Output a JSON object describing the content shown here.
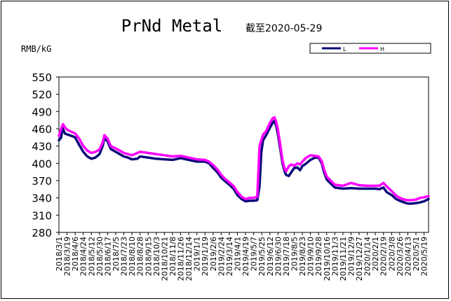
{
  "chart_data": {
    "type": "line",
    "title": "PrNd Metal",
    "subtitle": "截至2020-05-29",
    "ylabel": "RMB/kG",
    "xlabel": "",
    "ylim": [
      280,
      550
    ],
    "yticks": [
      280,
      310,
      340,
      370,
      400,
      430,
      460,
      490,
      520,
      550
    ],
    "grid": false,
    "legend_position": "top-right",
    "x_start": "2018/3/1",
    "x_end": "2020/5/29",
    "x_ticks": [
      "2018/3/1",
      "2018/3/19",
      "2018/4/6",
      "2018/4/24",
      "2018/5/12",
      "2018/5/30",
      "2018/6/17",
      "2018/7/5",
      "2018/7/23",
      "2018/8/10",
      "2018/8/28",
      "2018/9/15",
      "2018/10/3",
      "2018/10/21",
      "2018/11/8",
      "2018/11/26",
      "2018/12/14",
      "2019/1/1",
      "2019/1/19",
      "2019/2/6",
      "2019/2/24",
      "2019/3/14",
      "2019/4/1",
      "2019/4/19",
      "2019/5/7",
      "2019/5/25",
      "2019/6/12",
      "2019/6/30",
      "2019/7/18",
      "2019/8/5",
      "2019/8/23",
      "2019/9/10",
      "2019/9/28",
      "2019/10/16",
      "2019/11/3",
      "2019/11/21",
      "2019/12/9",
      "2019/12/27",
      "2020/1/14",
      "2020/2/1",
      "2020/2/19",
      "2020/3/8",
      "2020/3/26",
      "2020/4/13",
      "2020/5/1",
      "2020/5/19"
    ],
    "series": [
      {
        "name": "L",
        "color": "#0a0a7a",
        "points": [
          [
            "2018/3/1",
            440
          ],
          [
            "2018/3/6",
            445
          ],
          [
            "2018/3/9",
            462
          ],
          [
            "2018/3/14",
            452
          ],
          [
            "2018/3/20",
            450
          ],
          [
            "2018/3/28",
            448
          ],
          [
            "2018/4/6",
            445
          ],
          [
            "2018/4/15",
            432
          ],
          [
            "2018/4/24",
            420
          ],
          [
            "2018/5/3",
            412
          ],
          [
            "2018/5/12",
            408
          ],
          [
            "2018/5/21",
            410
          ],
          [
            "2018/5/30",
            416
          ],
          [
            "2018/6/6",
            430
          ],
          [
            "2018/6/10",
            444
          ],
          [
            "2018/6/17",
            438
          ],
          [
            "2018/6/24",
            425
          ],
          [
            "2018/7/5",
            420
          ],
          [
            "2018/7/14",
            416
          ],
          [
            "2018/7/23",
            412
          ],
          [
            "2018/8/1",
            410
          ],
          [
            "2018/8/10",
            407
          ],
          [
            "2018/8/22",
            408
          ],
          [
            "2018/8/28",
            412
          ],
          [
            "2018/9/15",
            410
          ],
          [
            "2018/10/3",
            408
          ],
          [
            "2018/10/21",
            407
          ],
          [
            "2018/11/8",
            406
          ],
          [
            "2018/11/26",
            409
          ],
          [
            "2018/12/14",
            406
          ],
          [
            "2019/1/1",
            403
          ],
          [
            "2019/1/19",
            403
          ],
          [
            "2019/1/28",
            400
          ],
          [
            "2019/2/6",
            392
          ],
          [
            "2019/2/15",
            385
          ],
          [
            "2019/2/24",
            375
          ],
          [
            "2019/3/6",
            368
          ],
          [
            "2019/3/14",
            363
          ],
          [
            "2019/3/24",
            355
          ],
          [
            "2019/4/1",
            345
          ],
          [
            "2019/4/10",
            338
          ],
          [
            "2019/4/19",
            334
          ],
          [
            "2019/4/28",
            335
          ],
          [
            "2019/5/7",
            335
          ],
          [
            "2019/5/15",
            336
          ],
          [
            "2019/5/20",
            360
          ],
          [
            "2019/5/24",
            420
          ],
          [
            "2019/5/28",
            440
          ],
          [
            "2019/6/3",
            448
          ],
          [
            "2019/6/12",
            462
          ],
          [
            "2019/6/18",
            470
          ],
          [
            "2019/6/22",
            474
          ],
          [
            "2019/6/26",
            465
          ],
          [
            "2019/6/30",
            450
          ],
          [
            "2019/7/5",
            425
          ],
          [
            "2019/7/10",
            400
          ],
          [
            "2019/7/15",
            385
          ],
          [
            "2019/7/18",
            380
          ],
          [
            "2019/7/24",
            378
          ],
          [
            "2019/7/30",
            385
          ],
          [
            "2019/8/5",
            392
          ],
          [
            "2019/8/12",
            393
          ],
          [
            "2019/8/18",
            388
          ],
          [
            "2019/8/23",
            395
          ],
          [
            "2019/9/1",
            400
          ],
          [
            "2019/9/10",
            406
          ],
          [
            "2019/9/20",
            410
          ],
          [
            "2019/9/28",
            410
          ],
          [
            "2019/10/5",
            400
          ],
          [
            "2019/10/10",
            385
          ],
          [
            "2019/10/16",
            372
          ],
          [
            "2019/10/25",
            365
          ],
          [
            "2019/11/3",
            358
          ],
          [
            "2019/11/21",
            356
          ],
          [
            "2019/12/9",
            357
          ],
          [
            "2019/12/27",
            356
          ],
          [
            "2020/1/14",
            356
          ],
          [
            "2020/2/1",
            356
          ],
          [
            "2020/2/10",
            355
          ],
          [
            "2020/2/19",
            358
          ],
          [
            "2020/2/26",
            350
          ],
          [
            "2020/3/8",
            345
          ],
          [
            "2020/3/18",
            338
          ],
          [
            "2020/3/26",
            335
          ],
          [
            "2020/4/5",
            332
          ],
          [
            "2020/4/13",
            330
          ],
          [
            "2020/4/22",
            330
          ],
          [
            "2020/5/1",
            331
          ],
          [
            "2020/5/10",
            332
          ],
          [
            "2020/5/19",
            334
          ],
          [
            "2020/5/29",
            338
          ]
        ]
      },
      {
        "name": "H",
        "color": "#ff00ff",
        "points": [
          [
            "2018/3/1",
            448
          ],
          [
            "2018/3/6",
            460
          ],
          [
            "2018/3/10",
            468
          ],
          [
            "2018/3/15",
            462
          ],
          [
            "2018/3/20",
            458
          ],
          [
            "2018/3/28",
            455
          ],
          [
            "2018/4/6",
            452
          ],
          [
            "2018/4/15",
            443
          ],
          [
            "2018/4/24",
            430
          ],
          [
            "2018/5/3",
            422
          ],
          [
            "2018/5/12",
            418
          ],
          [
            "2018/5/21",
            420
          ],
          [
            "2018/5/30",
            424
          ],
          [
            "2018/6/6",
            436
          ],
          [
            "2018/6/10",
            449
          ],
          [
            "2018/6/17",
            443
          ],
          [
            "2018/6/24",
            430
          ],
          [
            "2018/7/5",
            426
          ],
          [
            "2018/7/14",
            422
          ],
          [
            "2018/7/23",
            418
          ],
          [
            "2018/8/1",
            416
          ],
          [
            "2018/8/10",
            414
          ],
          [
            "2018/8/22",
            418
          ],
          [
            "2018/8/28",
            420
          ],
          [
            "2018/9/15",
            418
          ],
          [
            "2018/10/3",
            416
          ],
          [
            "2018/10/21",
            414
          ],
          [
            "2018/11/8",
            412
          ],
          [
            "2018/11/26",
            413
          ],
          [
            "2018/12/14",
            410
          ],
          [
            "2019/1/1",
            407
          ],
          [
            "2019/1/19",
            406
          ],
          [
            "2019/1/28",
            403
          ],
          [
            "2019/2/6",
            397
          ],
          [
            "2019/2/15",
            390
          ],
          [
            "2019/2/24",
            380
          ],
          [
            "2019/3/6",
            372
          ],
          [
            "2019/3/14",
            367
          ],
          [
            "2019/3/24",
            360
          ],
          [
            "2019/4/1",
            350
          ],
          [
            "2019/4/10",
            342
          ],
          [
            "2019/4/19",
            338
          ],
          [
            "2019/4/28",
            340
          ],
          [
            "2019/5/7",
            340
          ],
          [
            "2019/5/15",
            342
          ],
          [
            "2019/5/20",
            430
          ],
          [
            "2019/5/24",
            440
          ],
          [
            "2019/5/28",
            450
          ],
          [
            "2019/6/3",
            455
          ],
          [
            "2019/6/12",
            470
          ],
          [
            "2019/6/18",
            478
          ],
          [
            "2019/6/22",
            480
          ],
          [
            "2019/6/26",
            472
          ],
          [
            "2019/6/30",
            458
          ],
          [
            "2019/7/5",
            432
          ],
          [
            "2019/7/10",
            405
          ],
          [
            "2019/7/15",
            390
          ],
          [
            "2019/7/18",
            386
          ],
          [
            "2019/7/24",
            395
          ],
          [
            "2019/7/30",
            398
          ],
          [
            "2019/8/5",
            396
          ],
          [
            "2019/8/12",
            400
          ],
          [
            "2019/8/18",
            398
          ],
          [
            "2019/8/23",
            403
          ],
          [
            "2019/9/1",
            410
          ],
          [
            "2019/9/10",
            414
          ],
          [
            "2019/9/20",
            413
          ],
          [
            "2019/9/28",
            412
          ],
          [
            "2019/10/5",
            404
          ],
          [
            "2019/10/10",
            390
          ],
          [
            "2019/10/16",
            377
          ],
          [
            "2019/10/25",
            370
          ],
          [
            "2019/11/3",
            363
          ],
          [
            "2019/11/21",
            361
          ],
          [
            "2019/12/9",
            366
          ],
          [
            "2019/12/27",
            362
          ],
          [
            "2020/1/14",
            361
          ],
          [
            "2020/2/1",
            361
          ],
          [
            "2020/2/10",
            361
          ],
          [
            "2020/2/19",
            366
          ],
          [
            "2020/2/26",
            360
          ],
          [
            "2020/3/8",
            352
          ],
          [
            "2020/3/18",
            344
          ],
          [
            "2020/3/26",
            340
          ],
          [
            "2020/4/5",
            337
          ],
          [
            "2020/4/13",
            336
          ],
          [
            "2020/4/22",
            336
          ],
          [
            "2020/5/1",
            337
          ],
          [
            "2020/5/10",
            340
          ],
          [
            "2020/5/19",
            341
          ],
          [
            "2020/5/29",
            343
          ]
        ]
      }
    ]
  }
}
